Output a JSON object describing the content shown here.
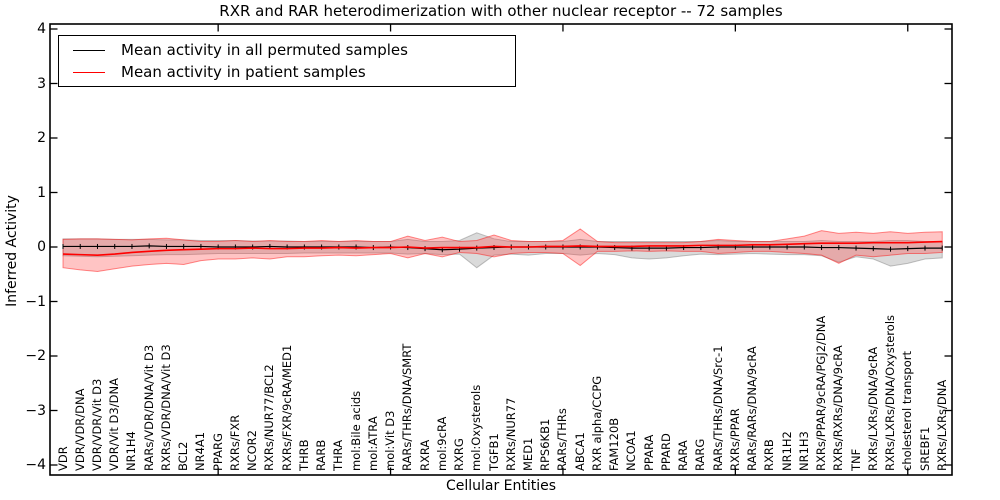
{
  "title": "RXR and RAR heterodimerization with other nuclear receptor -- 72 samples",
  "legend": {
    "items": [
      {
        "label": "Mean activity in all permuted samples",
        "color": "#000000"
      },
      {
        "label": "Mean activity in patient samples",
        "color": "#ff0000"
      }
    ]
  },
  "chart_data": {
    "type": "line",
    "title": "RXR and RAR heterodimerization with other nuclear receptor -- 72 samples",
    "xlabel": "Cellular Entities",
    "ylabel": "Inferred Activity",
    "ylim": [
      -4,
      4
    ],
    "yticks": [
      4,
      3,
      2,
      1,
      0,
      -1,
      -2,
      -3,
      -4
    ],
    "ytick_labels": [
      "4",
      "3",
      "2",
      "1",
      "0",
      "−1",
      "−2",
      "−3",
      "−4"
    ],
    "xtick_positions": [
      9,
      19,
      29,
      39,
      49
    ],
    "grid": false,
    "legend_position": "upper left",
    "categories": [
      "VDR",
      "VDR/VDR/DNA",
      "VDR/VDR/Vit D3",
      "VDR/Vit D3/DNA",
      "NR1H4",
      "RARs/VDR/DNA/Vit D3",
      "RXRs/VDR/DNA/Vit D3",
      "BCL2",
      "NR4A1",
      "PPARG",
      "RXRs/FXR",
      "NCOR2",
      "RXRs/NUR77/BCL2",
      "RXRs/FXR/9cRA/MED1",
      "THRB",
      "RARB",
      "THRA",
      "mol:Bile acids",
      "mol:ATRA",
      "mol:Vit D3",
      "RARs/THRs/DNA/SMRT",
      "RXRA",
      "mol:9cRA",
      "RXRG",
      "mol:Oxysterols",
      "TGFB1",
      "RXRs/NUR77",
      "MED1",
      "RPS6KB1",
      "RARs/THRs",
      "ABCA1",
      "RXR alpha/CCPG",
      "FAM120B",
      "NCOA1",
      "PPARA",
      "PPARD",
      "RARA",
      "RARG",
      "RARs/THRs/DNA/Src-1",
      "RXRs/PPAR",
      "RARs/RARs/DNA/9cRA",
      "RXRB",
      "NR1H2",
      "NR1H3",
      "RXRs/PPAR/9cRA/PGJ2/DNA",
      "RXRs/RXRs/DNA/9cRA",
      "TNF",
      "RXRs/LXRs/DNA/9cRA",
      "RXRs/LXRs/DNA/Oxysterols",
      "cholesterol transport",
      "SREBF1",
      "RXRs/LXRs/DNA"
    ],
    "series": [
      {
        "name": "Mean activity in all permuted samples",
        "color": "#000000",
        "values": [
          0.01,
          0.01,
          0.01,
          0.01,
          0.01,
          0.02,
          0.01,
          0.01,
          0.01,
          0.0,
          0.0,
          0.0,
          0.01,
          0.0,
          0.0,
          0.0,
          0.0,
          0.0,
          -0.01,
          0.0,
          -0.01,
          -0.03,
          -0.05,
          -0.04,
          -0.02,
          -0.01,
          0.0,
          0.0,
          0.0,
          0.0,
          0.0,
          0.0,
          -0.01,
          -0.02,
          -0.02,
          -0.02,
          -0.01,
          -0.01,
          0.0,
          0.0,
          0.0,
          0.0,
          0.0,
          0.0,
          -0.01,
          -0.01,
          -0.02,
          -0.03,
          -0.04,
          -0.03,
          -0.02,
          -0.02
        ]
      },
      {
        "name": "Mean activity in patient samples",
        "color": "#ff0000",
        "values": [
          -0.13,
          -0.14,
          -0.15,
          -0.13,
          -0.1,
          -0.08,
          -0.06,
          -0.05,
          -0.04,
          -0.03,
          -0.03,
          -0.02,
          -0.03,
          -0.03,
          -0.02,
          -0.02,
          -0.01,
          -0.02,
          -0.01,
          -0.01,
          0.0,
          -0.02,
          -0.01,
          -0.01,
          -0.01,
          0.01,
          0.0,
          0.0,
          0.01,
          0.01,
          0.02,
          0.01,
          0.01,
          0.01,
          0.02,
          0.02,
          0.02,
          0.03,
          0.03,
          0.03,
          0.04,
          0.04,
          0.05,
          0.06,
          0.07,
          0.07,
          0.07,
          0.08,
          0.08,
          0.08,
          0.09,
          0.1
        ]
      }
    ],
    "bands": [
      {
        "name": "permuted-samples-range",
        "fill": "rgba(150,150,150,0.35)",
        "edge": "rgba(120,120,120,0.45)",
        "upper": [
          0.15,
          0.15,
          0.15,
          0.14,
          0.14,
          0.14,
          0.13,
          0.13,
          0.12,
          0.12,
          0.12,
          0.11,
          0.11,
          0.11,
          0.1,
          0.1,
          0.1,
          0.1,
          0.1,
          0.1,
          0.14,
          0.1,
          0.1,
          0.12,
          0.26,
          0.15,
          0.1,
          0.1,
          0.1,
          0.1,
          0.14,
          0.1,
          0.1,
          0.1,
          0.1,
          0.1,
          0.1,
          0.1,
          0.12,
          0.1,
          0.1,
          0.1,
          0.1,
          0.1,
          0.12,
          0.1,
          0.1,
          0.1,
          0.12,
          0.12,
          0.1,
          0.1
        ],
        "lower": [
          -0.16,
          -0.17,
          -0.18,
          -0.17,
          -0.16,
          -0.15,
          -0.14,
          -0.14,
          -0.13,
          -0.12,
          -0.12,
          -0.12,
          -0.12,
          -0.12,
          -0.11,
          -0.11,
          -0.11,
          -0.11,
          -0.11,
          -0.11,
          -0.13,
          -0.12,
          -0.14,
          -0.13,
          -0.38,
          -0.15,
          -0.13,
          -0.15,
          -0.12,
          -0.12,
          -0.15,
          -0.12,
          -0.14,
          -0.2,
          -0.22,
          -0.2,
          -0.16,
          -0.13,
          -0.14,
          -0.13,
          -0.12,
          -0.13,
          -0.14,
          -0.14,
          -0.16,
          -0.28,
          -0.18,
          -0.22,
          -0.35,
          -0.3,
          -0.22,
          -0.2
        ]
      },
      {
        "name": "patient-samples-range",
        "fill": "rgba(255,60,60,0.30)",
        "edge": "rgba(255,0,0,0.45)",
        "upper": [
          0.14,
          0.15,
          0.15,
          0.14,
          0.13,
          0.15,
          0.16,
          0.13,
          0.1,
          0.1,
          0.12,
          0.1,
          0.12,
          0.1,
          0.1,
          0.12,
          0.1,
          0.12,
          0.1,
          0.1,
          0.2,
          0.12,
          0.18,
          0.1,
          0.12,
          0.22,
          0.12,
          0.1,
          0.1,
          0.12,
          0.33,
          0.1,
          0.08,
          0.08,
          0.08,
          0.08,
          0.08,
          0.1,
          0.14,
          0.12,
          0.1,
          0.1,
          0.15,
          0.2,
          0.3,
          0.25,
          0.27,
          0.25,
          0.28,
          0.25,
          0.27,
          0.28
        ],
        "lower": [
          -0.38,
          -0.42,
          -0.45,
          -0.4,
          -0.35,
          -0.32,
          -0.3,
          -0.32,
          -0.25,
          -0.22,
          -0.22,
          -0.2,
          -0.22,
          -0.18,
          -0.18,
          -0.16,
          -0.15,
          -0.16,
          -0.14,
          -0.12,
          -0.2,
          -0.12,
          -0.18,
          -0.1,
          -0.12,
          -0.18,
          -0.12,
          -0.1,
          -0.1,
          -0.12,
          -0.34,
          -0.08,
          -0.08,
          -0.07,
          -0.08,
          -0.07,
          -0.08,
          -0.08,
          -0.12,
          -0.1,
          -0.08,
          -0.08,
          -0.1,
          -0.12,
          -0.15,
          -0.3,
          -0.15,
          -0.18,
          -0.15,
          -0.12,
          -0.12,
          -0.1
        ]
      }
    ]
  }
}
